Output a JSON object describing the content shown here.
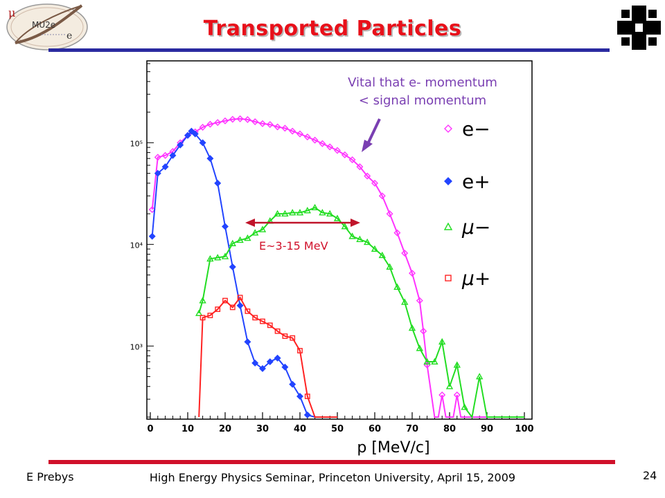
{
  "slide": {
    "title": "Transported Particles",
    "footer_author": "E Prebys",
    "footer_event": "High Energy Physics Seminar, Princeton University, April 15, 2009",
    "page_number": "24"
  },
  "logos": {
    "left": "mu2e-logo",
    "left_text": "MU2e",
    "right": "fermilab-logo"
  },
  "annotations": {
    "momentum_note_line1": "Vital that e- momentum",
    "momentum_note_line2": "< signal momentum",
    "energy_range": "E~3-15 MeV"
  },
  "colors": {
    "title": "#e8101a",
    "title_rule": "#2a2aa0",
    "footer_rule": "#d0102a",
    "annotation_purple": "#7a3fb2",
    "annotation_red": "#d0102a",
    "e_minus": "#ff33ff",
    "e_plus": "#2244ff",
    "mu_minus": "#22dd22",
    "mu_plus": "#ff2222"
  },
  "chart_data": {
    "type": "line",
    "xlabel": "p [MeV/c]",
    "ylabel": "",
    "xlim": [
      0,
      100
    ],
    "ylim": [
      200,
      600000
    ],
    "log_y": true,
    "x_ticks": [
      "0",
      "10",
      "20",
      "30",
      "40",
      "50",
      "60",
      "70",
      "80",
      "90",
      "100"
    ],
    "y_ticks": [
      {
        "label": "10³",
        "value": 1000
      },
      {
        "label": "10⁴",
        "value": 10000
      },
      {
        "label": "10⁵",
        "value": 100000
      }
    ],
    "legend_position": "right",
    "series": [
      {
        "name": "e−",
        "color": "#ff33ff",
        "marker": "diamond-open",
        "points": [
          [
            0.5,
            22000
          ],
          [
            2,
            72000
          ],
          [
            4,
            75000
          ],
          [
            6,
            82000
          ],
          [
            8,
            100000
          ],
          [
            10,
            118000
          ],
          [
            12,
            128000
          ],
          [
            14,
            142000
          ],
          [
            16,
            152000
          ],
          [
            18,
            158000
          ],
          [
            20,
            164000
          ],
          [
            22,
            170000
          ],
          [
            24,
            172000
          ],
          [
            26,
            169000
          ],
          [
            28,
            161000
          ],
          [
            30,
            154000
          ],
          [
            32,
            151000
          ],
          [
            34,
            143000
          ],
          [
            36,
            139000
          ],
          [
            38,
            130000
          ],
          [
            40,
            122000
          ],
          [
            42,
            114000
          ],
          [
            44,
            106000
          ],
          [
            46,
            98000
          ],
          [
            48,
            91000
          ],
          [
            50,
            84000
          ],
          [
            52,
            76000
          ],
          [
            54,
            68000
          ],
          [
            56,
            58000
          ],
          [
            58,
            47000
          ],
          [
            60,
            40000
          ],
          [
            62,
            30000
          ],
          [
            64,
            20000
          ],
          [
            66,
            13000
          ],
          [
            68,
            8200
          ],
          [
            70,
            5200
          ],
          [
            72,
            2800
          ],
          [
            73,
            1400
          ],
          [
            74,
            650
          ],
          [
            76,
            200
          ],
          [
            77,
            200
          ],
          [
            78,
            330
          ],
          [
            79,
            200
          ],
          [
            81,
            200
          ],
          [
            82,
            330
          ],
          [
            83,
            200
          ],
          [
            100,
            200
          ]
        ]
      },
      {
        "name": "e+",
        "color": "#2244ff",
        "marker": "diamond-filled",
        "points": [
          [
            0.5,
            12000
          ],
          [
            2,
            50000
          ],
          [
            4,
            58000
          ],
          [
            6,
            75000
          ],
          [
            8,
            95000
          ],
          [
            10,
            118000
          ],
          [
            11,
            130000
          ],
          [
            12,
            122000
          ],
          [
            14,
            100000
          ],
          [
            16,
            70000
          ],
          [
            18,
            40000
          ],
          [
            20,
            15000
          ],
          [
            22,
            6000
          ],
          [
            24,
            2500
          ],
          [
            26,
            1100
          ],
          [
            28,
            680
          ],
          [
            30,
            600
          ],
          [
            32,
            700
          ],
          [
            34,
            760
          ],
          [
            36,
            620
          ],
          [
            38,
            420
          ],
          [
            40,
            320
          ],
          [
            42,
            210
          ],
          [
            44,
            200
          ],
          [
            46,
            200
          ],
          [
            48,
            200
          ],
          [
            50,
            200
          ]
        ]
      },
      {
        "name": "μ−",
        "color": "#22dd22",
        "marker": "triangle-open",
        "points": [
          [
            13,
            2100
          ],
          [
            14,
            2800
          ],
          [
            16,
            7200
          ],
          [
            18,
            7400
          ],
          [
            20,
            7600
          ],
          [
            22,
            10200
          ],
          [
            24,
            11000
          ],
          [
            26,
            11500
          ],
          [
            28,
            13000
          ],
          [
            30,
            14000
          ],
          [
            32,
            17000
          ],
          [
            34,
            20000
          ],
          [
            36,
            20000
          ],
          [
            38,
            20500
          ],
          [
            40,
            20500
          ],
          [
            42,
            21500
          ],
          [
            44,
            23000
          ],
          [
            46,
            20500
          ],
          [
            48,
            20000
          ],
          [
            50,
            18000
          ],
          [
            52,
            15000
          ],
          [
            54,
            12000
          ],
          [
            56,
            11200
          ],
          [
            58,
            10500
          ],
          [
            60,
            9000
          ],
          [
            62,
            7800
          ],
          [
            64,
            6000
          ],
          [
            66,
            3800
          ],
          [
            68,
            2700
          ],
          [
            70,
            1500
          ],
          [
            72,
            950
          ],
          [
            74,
            700
          ],
          [
            76,
            700
          ],
          [
            78,
            1100
          ],
          [
            80,
            400
          ],
          [
            82,
            650
          ],
          [
            84,
            250
          ],
          [
            86,
            200
          ],
          [
            88,
            500
          ],
          [
            90,
            200
          ],
          [
            100,
            200
          ]
        ]
      },
      {
        "name": "μ+",
        "color": "#ff2222",
        "marker": "square-open",
        "points": [
          [
            13,
            200
          ],
          [
            14,
            1900
          ],
          [
            16,
            2000
          ],
          [
            18,
            2300
          ],
          [
            20,
            2800
          ],
          [
            22,
            2400
          ],
          [
            24,
            3000
          ],
          [
            26,
            2200
          ],
          [
            28,
            1900
          ],
          [
            30,
            1750
          ],
          [
            32,
            1600
          ],
          [
            34,
            1400
          ],
          [
            36,
            1250
          ],
          [
            38,
            1200
          ],
          [
            40,
            900
          ],
          [
            42,
            320
          ],
          [
            44,
            200
          ],
          [
            46,
            200
          ],
          [
            48,
            200
          ],
          [
            50,
            200
          ]
        ]
      }
    ]
  }
}
